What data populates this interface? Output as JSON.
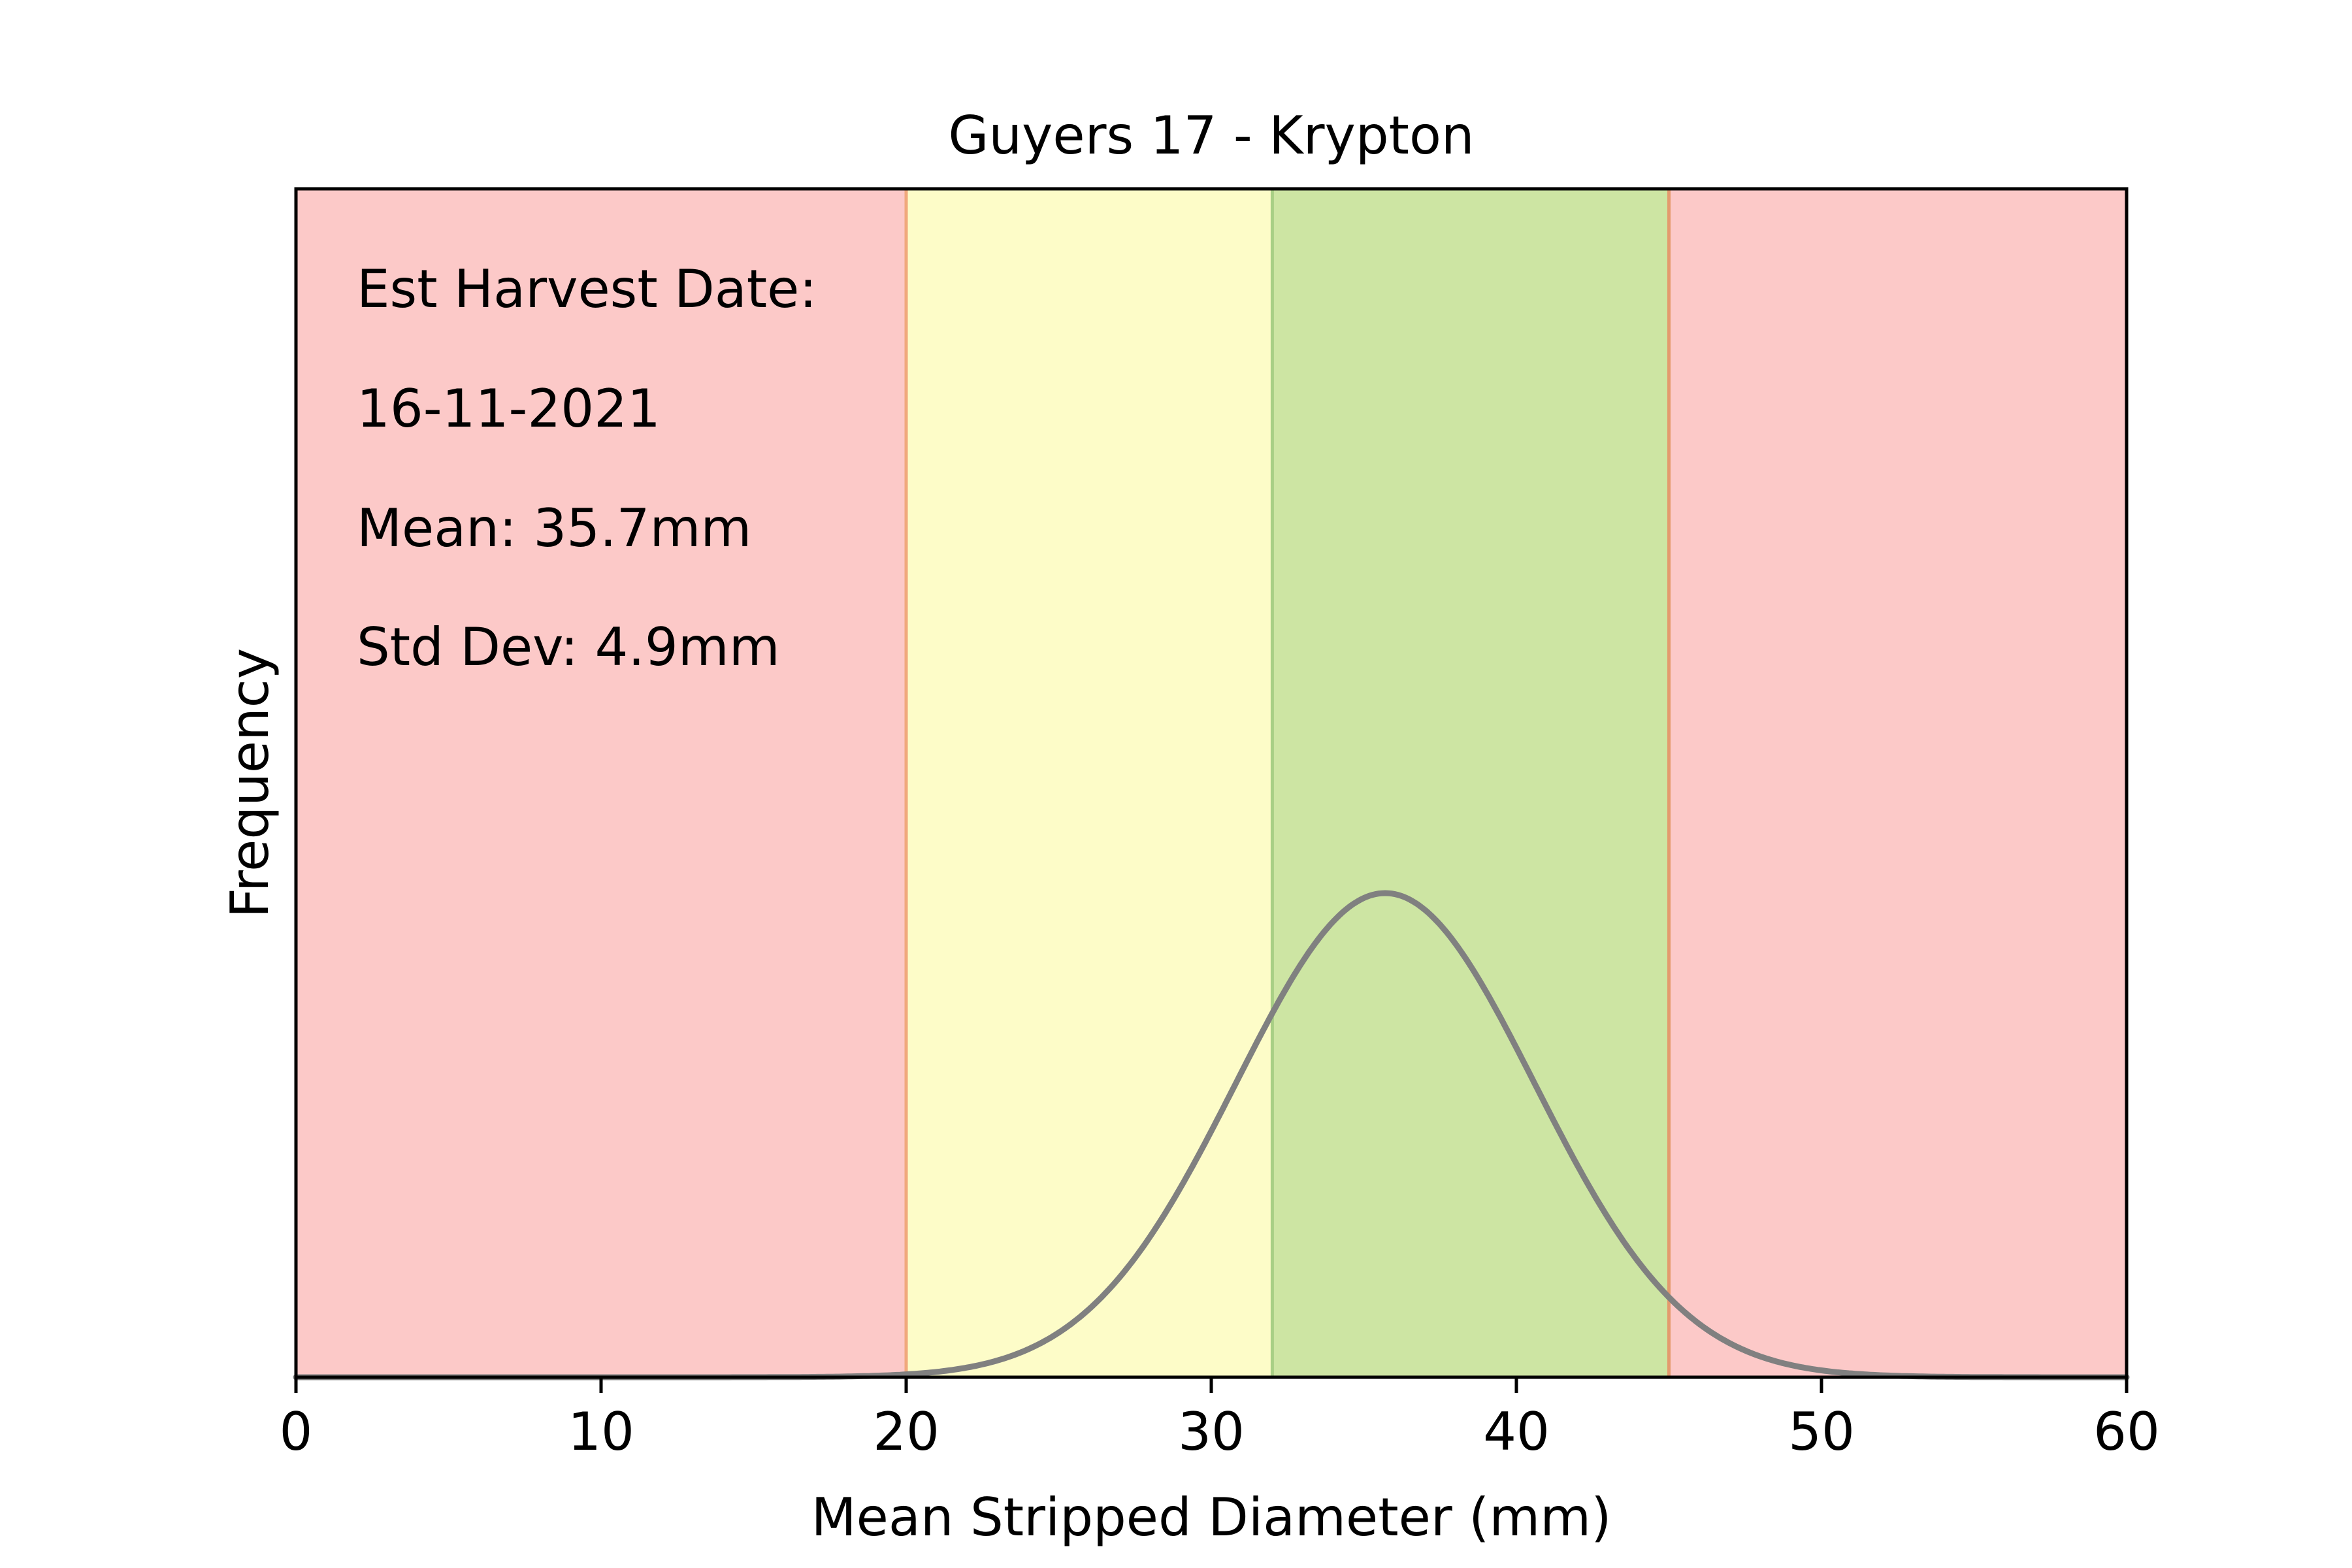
{
  "chart_data": {
    "type": "area",
    "title": "Guyers 17 - Krypton",
    "xlabel": "Mean Stripped Diameter (mm)",
    "ylabel": "Frequency",
    "xlim": [
      0,
      60
    ],
    "x_ticks": [
      0,
      10,
      20,
      30,
      40,
      50,
      60
    ],
    "y_ticks_shown": false,
    "grid": false,
    "legend": "none",
    "bands": [
      {
        "from": 0,
        "to": 20,
        "color": "#fcc9c8",
        "zone": "red"
      },
      {
        "from": 20,
        "to": 32,
        "color": "#fdfcc8",
        "zone": "yellow"
      },
      {
        "from": 32,
        "to": 45,
        "color": "#cde5a3",
        "zone": "green"
      },
      {
        "from": 45,
        "to": 60,
        "color": "#fcc9c8",
        "zone": "red"
      }
    ],
    "band_edges": [
      {
        "x": 20,
        "color": "#f0a87c"
      },
      {
        "x": 32,
        "color": "#a8cf85"
      },
      {
        "x": 45,
        "color": "#e49a6e"
      }
    ],
    "curve": {
      "kind": "normal_distribution",
      "mean": 35.7,
      "std_dev": 4.9,
      "color": "#808080"
    },
    "annotations": [
      "Est Harvest Date:",
      "16-11-2021",
      "Mean: 35.7mm",
      "Std Dev: 4.9mm"
    ]
  }
}
